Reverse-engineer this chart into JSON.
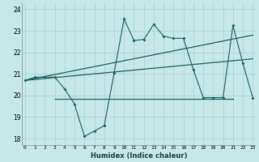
{
  "xlabel": "Humidex (Indice chaleur)",
  "bg_color": "#c6e8e8",
  "grid_color": "#a8d0d0",
  "line_color": "#1a6060",
  "x_values": [
    0,
    1,
    2,
    3,
    4,
    5,
    6,
    7,
    8,
    9,
    10,
    11,
    12,
    13,
    14,
    15,
    16,
    17,
    18,
    19,
    20,
    21,
    22,
    23
  ],
  "main_line_y": [
    20.7,
    20.85,
    20.85,
    20.85,
    20.3,
    19.6,
    18.1,
    18.35,
    18.6,
    21.05,
    23.55,
    22.55,
    22.6,
    23.3,
    22.75,
    22.65,
    22.65,
    21.2,
    19.9,
    19.9,
    19.9,
    23.25,
    21.5,
    19.9
  ],
  "trend1_x": [
    0,
    23
  ],
  "trend1_y": [
    20.7,
    22.8
  ],
  "trend2_x": [
    0,
    23
  ],
  "trend2_y": [
    20.7,
    21.7
  ],
  "flat_line_x": [
    3,
    21
  ],
  "flat_line_y": [
    19.85,
    19.85
  ],
  "ylim": [
    17.7,
    24.3
  ],
  "xlim": [
    -0.3,
    23.3
  ],
  "yticks": [
    18,
    19,
    20,
    21,
    22,
    23,
    24
  ],
  "xtick_labels": [
    "0",
    "1",
    "2",
    "3",
    "4",
    "5",
    "6",
    "7",
    "8",
    "9",
    "10",
    "11",
    "12",
    "13",
    "14",
    "15",
    "16",
    "17",
    "18",
    "19",
    "20",
    "21",
    "22",
    "23"
  ]
}
